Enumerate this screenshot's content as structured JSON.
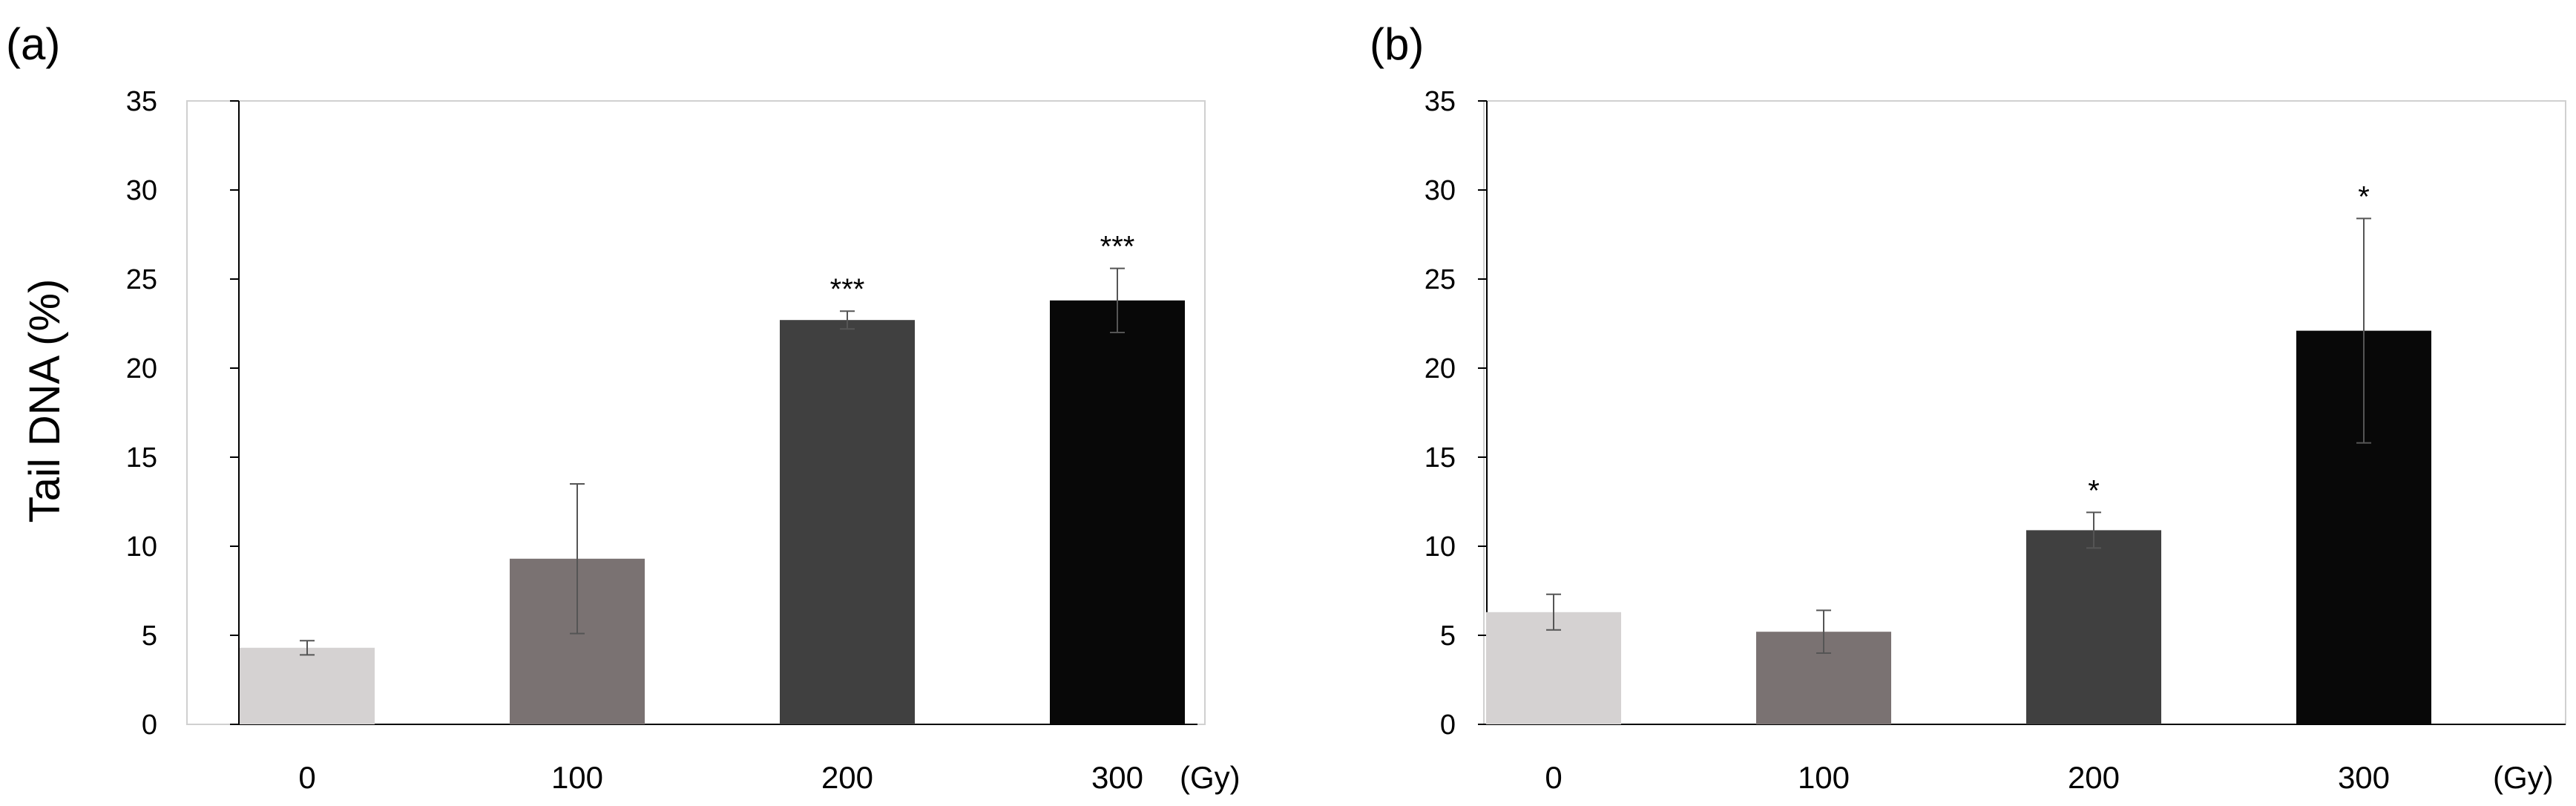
{
  "chart_data": [
    {
      "type": "bar",
      "panel_label": "(a)",
      "ylabel": "Tail DNA (%)",
      "xlabel": "",
      "unit_label": "(Gy)",
      "categories": [
        "0",
        "100",
        "200",
        "300"
      ],
      "values": [
        4.3,
        9.3,
        22.7,
        23.8
      ],
      "errors": [
        0.4,
        4.2,
        0.5,
        1.8
      ],
      "significance": [
        "",
        "",
        "***",
        "***"
      ],
      "bar_colors": [
        "#d5d2d2",
        "#7a7272",
        "#404040",
        "#080808"
      ],
      "ylim": [
        0,
        35
      ],
      "yticks": [
        0,
        5,
        10,
        15,
        20,
        25,
        30,
        35
      ],
      "grid": false
    },
    {
      "type": "bar",
      "panel_label": "(b)",
      "ylabel": "",
      "xlabel": "",
      "unit_label": "(Gy)",
      "categories": [
        "0",
        "100",
        "200",
        "300"
      ],
      "values": [
        6.3,
        5.2,
        10.9,
        22.1
      ],
      "errors": [
        1.0,
        1.2,
        1.0,
        6.3
      ],
      "significance": [
        "",
        "",
        "*",
        "*"
      ],
      "bar_colors": [
        "#d5d2d2",
        "#7a7272",
        "#404040",
        "#080808"
      ],
      "ylim": [
        0,
        35
      ],
      "yticks": [
        0,
        5,
        10,
        15,
        20,
        25,
        30,
        35
      ],
      "grid": false
    }
  ]
}
